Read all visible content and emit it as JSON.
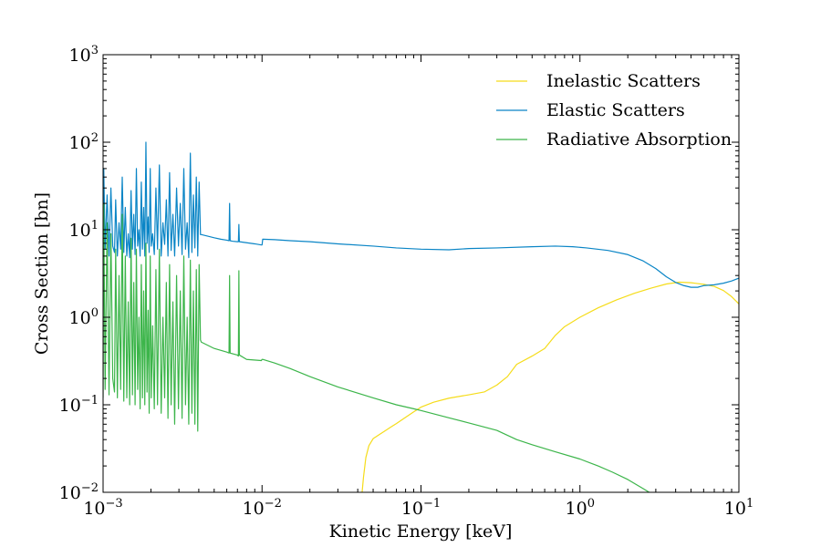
{
  "chart_data": {
    "type": "line",
    "title": "",
    "xlabel": "Kinetic Energy [keV]",
    "ylabel": "Cross Section [bn]",
    "xscale": "log",
    "yscale": "log",
    "xlim": [
      0.001,
      10
    ],
    "ylim": [
      0.01,
      1000
    ],
    "x_ticks": [
      {
        "value": 0.001,
        "base": "10",
        "exp": "−3"
      },
      {
        "value": 0.01,
        "base": "10",
        "exp": "−2"
      },
      {
        "value": 0.1,
        "base": "10",
        "exp": "−1"
      },
      {
        "value": 1,
        "base": "10",
        "exp": "0"
      },
      {
        "value": 10,
        "base": "10",
        "exp": "1"
      }
    ],
    "y_ticks": [
      {
        "value": 0.01,
        "base": "10",
        "exp": "−2"
      },
      {
        "value": 0.1,
        "base": "10",
        "exp": "−1"
      },
      {
        "value": 1,
        "base": "10",
        "exp": "0"
      },
      {
        "value": 10,
        "base": "10",
        "exp": "1"
      },
      {
        "value": 100,
        "base": "10",
        "exp": "2"
      },
      {
        "value": 1000,
        "base": "10",
        "exp": "3"
      }
    ],
    "grid": false,
    "legend_position": "top-right",
    "series": [
      {
        "name": "Inelastic Scatters",
        "color": "#f5dc1a",
        "x": [
          0.0425,
          0.0435,
          0.045,
          0.047,
          0.05,
          0.055,
          0.06,
          0.065,
          0.07,
          0.08,
          0.09,
          0.1,
          0.12,
          0.15,
          0.2,
          0.25,
          0.3,
          0.35,
          0.4,
          0.5,
          0.6,
          0.7,
          0.8,
          1.0,
          1.3,
          1.7,
          2.2,
          2.8,
          3.5,
          4.2,
          5.0,
          6.0,
          7.0,
          8.0,
          9.0,
          10.0
        ],
        "y": [
          0.0095,
          0.015,
          0.025,
          0.034,
          0.041,
          0.046,
          0.051,
          0.056,
          0.061,
          0.072,
          0.083,
          0.094,
          0.107,
          0.119,
          0.13,
          0.14,
          0.168,
          0.21,
          0.29,
          0.36,
          0.44,
          0.62,
          0.78,
          1.0,
          1.28,
          1.58,
          1.88,
          2.15,
          2.4,
          2.52,
          2.48,
          2.38,
          2.25,
          2.02,
          1.72,
          1.42
        ]
      },
      {
        "name": "Elastic Scatters",
        "color": "#0a85c6",
        "x": [
          0.001,
          0.00101,
          0.00103,
          0.00106,
          0.00109,
          0.00112,
          0.00115,
          0.00118,
          0.0012,
          0.00123,
          0.00126,
          0.00129,
          0.00132,
          0.00135,
          0.00138,
          0.00141,
          0.00144,
          0.00147,
          0.0015,
          0.00153,
          0.00156,
          0.00159,
          0.00162,
          0.00165,
          0.00168,
          0.00171,
          0.00174,
          0.00177,
          0.0018,
          0.00183,
          0.00186,
          0.00189,
          0.00192,
          0.00195,
          0.00198,
          0.00201,
          0.00205,
          0.0021,
          0.00215,
          0.0022,
          0.00226,
          0.00232,
          0.00238,
          0.00244,
          0.0025,
          0.00256,
          0.00262,
          0.00268,
          0.00275,
          0.00282,
          0.0029,
          0.00298,
          0.00306,
          0.00314,
          0.00322,
          0.0033,
          0.00338,
          0.00346,
          0.00354,
          0.00362,
          0.0037,
          0.00378,
          0.00386,
          0.00394,
          0.00402,
          0.0041,
          0.00415,
          0.0045,
          0.005,
          0.0055,
          0.006,
          0.0062,
          0.00625,
          0.0063,
          0.0065,
          0.007,
          0.0071,
          0.00715,
          0.0072,
          0.008,
          0.009,
          0.0099,
          0.01,
          0.0101,
          0.012,
          0.015,
          0.02,
          0.03,
          0.05,
          0.07,
          0.1,
          0.15,
          0.2,
          0.3,
          0.5,
          0.7,
          0.9,
          1.1,
          1.5,
          2.0,
          2.5,
          3.0,
          3.5,
          4.0,
          4.5,
          5.0,
          5.5,
          6.0,
          7.0,
          8.0,
          9.0,
          10.0
        ],
        "y": [
          4.0,
          50.0,
          6.0,
          25.0,
          5.0,
          30.0,
          6.5,
          5.5,
          22.0,
          5.0,
          12.0,
          6.0,
          40.0,
          5.5,
          18.0,
          5.0,
          9.0,
          4.8,
          28.0,
          6.0,
          15.0,
          5.2,
          50.0,
          6.5,
          10.0,
          5.0,
          35.0,
          6.0,
          18.0,
          5.0,
          100.0,
          7.0,
          14.0,
          5.5,
          50.0,
          6.5,
          9.0,
          5.2,
          30.0,
          6.0,
          55.0,
          5.0,
          12.0,
          6.8,
          22.0,
          5.0,
          45.0,
          5.8,
          15.0,
          5.0,
          30.0,
          6.5,
          20.0,
          5.2,
          50.0,
          6.0,
          12.0,
          4.8,
          75.0,
          5.5,
          25.0,
          6.2,
          40.0,
          5.0,
          35.0,
          8.8,
          8.8,
          8.5,
          8.1,
          7.8,
          7.6,
          7.5,
          20.0,
          7.5,
          7.4,
          7.3,
          7.3,
          11.5,
          7.3,
          7.1,
          6.9,
          6.7,
          6.7,
          7.8,
          7.7,
          7.5,
          7.3,
          6.9,
          6.5,
          6.2,
          6.0,
          5.9,
          6.1,
          6.2,
          6.4,
          6.5,
          6.4,
          6.2,
          5.8,
          5.2,
          4.4,
          3.6,
          2.9,
          2.5,
          2.3,
          2.2,
          2.2,
          2.3,
          2.35,
          2.45,
          2.6,
          2.8
        ]
      },
      {
        "name": "Radiative Absorption",
        "color": "#3cb54a",
        "x": [
          0.001,
          0.00101,
          0.00103,
          0.00106,
          0.00109,
          0.00112,
          0.00115,
          0.00118,
          0.0012,
          0.00123,
          0.00126,
          0.00129,
          0.00132,
          0.00135,
          0.00138,
          0.00141,
          0.00144,
          0.00147,
          0.0015,
          0.00153,
          0.00156,
          0.00159,
          0.00162,
          0.00165,
          0.00168,
          0.00171,
          0.00174,
          0.00177,
          0.0018,
          0.00183,
          0.00186,
          0.00189,
          0.00192,
          0.00195,
          0.00198,
          0.00201,
          0.00205,
          0.0021,
          0.00215,
          0.0022,
          0.00226,
          0.00232,
          0.00238,
          0.00244,
          0.0025,
          0.00256,
          0.00262,
          0.00268,
          0.00275,
          0.00282,
          0.0029,
          0.00298,
          0.00306,
          0.00314,
          0.00322,
          0.0033,
          0.00338,
          0.00346,
          0.00354,
          0.00362,
          0.0037,
          0.00378,
          0.00386,
          0.00394,
          0.00402,
          0.0041,
          0.00415,
          0.005,
          0.006,
          0.0062,
          0.00625,
          0.0063,
          0.007,
          0.0071,
          0.00715,
          0.0072,
          0.008,
          0.0099,
          0.01,
          0.0101,
          0.012,
          0.015,
          0.02,
          0.03,
          0.05,
          0.07,
          0.09,
          0.1,
          0.15,
          0.2,
          0.3,
          0.4,
          0.5,
          0.7,
          1.0,
          1.3,
          1.6,
          2.0,
          2.5,
          3.0
        ],
        "y": [
          0.12,
          20.0,
          0.15,
          12.0,
          0.13,
          9.0,
          0.2,
          0.14,
          6.0,
          0.12,
          3.0,
          0.15,
          15.0,
          0.11,
          5.0,
          0.12,
          1.5,
          0.1,
          8.0,
          0.13,
          2.5,
          0.1,
          6.0,
          0.15,
          1.0,
          0.09,
          4.0,
          0.12,
          2.0,
          0.1,
          7.0,
          0.14,
          1.2,
          0.08,
          5.0,
          0.12,
          0.8,
          0.09,
          3.5,
          0.1,
          6.0,
          0.08,
          1.0,
          0.12,
          2.5,
          0.07,
          4.0,
          0.1,
          1.5,
          0.06,
          3.0,
          0.09,
          2.0,
          0.07,
          5.0,
          0.1,
          1.0,
          0.06,
          4.5,
          0.08,
          2.0,
          0.06,
          3.5,
          0.05,
          4.0,
          0.55,
          0.52,
          0.44,
          0.4,
          0.39,
          3.0,
          0.39,
          0.37,
          0.36,
          3.4,
          0.37,
          0.33,
          0.32,
          0.33,
          0.33,
          0.3,
          0.26,
          0.21,
          0.16,
          0.12,
          0.1,
          0.09,
          0.086,
          0.071,
          0.062,
          0.051,
          0.04,
          0.035,
          0.029,
          0.024,
          0.02,
          0.017,
          0.014,
          0.011,
          0.009
        ]
      }
    ]
  }
}
